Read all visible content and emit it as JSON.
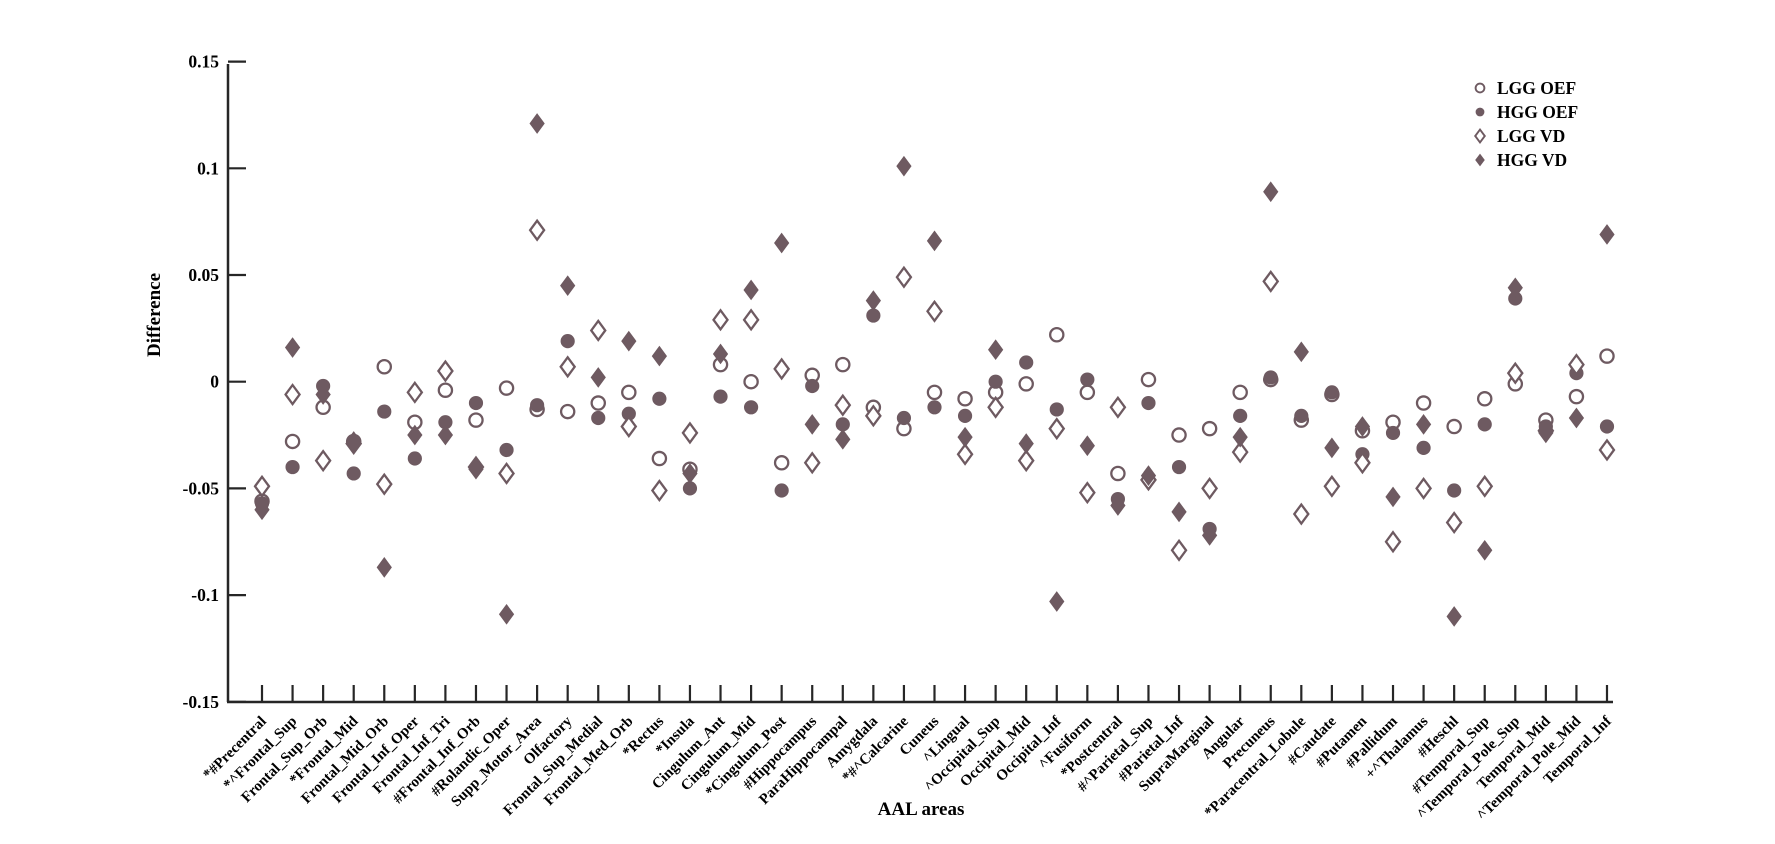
{
  "colors": {
    "marker": "#6e5a61",
    "axis": "#262626",
    "text": "#000000",
    "background": "#ffffff"
  },
  "axes": {
    "ylabel": "Difference",
    "xlabel": "AAL areas"
  },
  "legend": {
    "position": "upper right",
    "items": [
      {
        "label": "LGG OEF",
        "marker": "open-circle"
      },
      {
        "label": "HGG OEF",
        "marker": "filled-circle"
      },
      {
        "label": "LGG VD",
        "marker": "open-diamond"
      },
      {
        "label": "HGG VD",
        "marker": "filled-diamond"
      }
    ]
  },
  "chart_data": {
    "type": "scatter",
    "title": "",
    "xlabel": "AAL areas",
    "ylabel": "Difference",
    "ylim": [
      -0.15,
      0.15
    ],
    "ytick_values": [
      0.15,
      0.1,
      0.05,
      0,
      -0.05,
      -0.1,
      -0.15
    ],
    "ytick_labels": [
      "0.15",
      "0.1",
      "0.05",
      "0",
      "-0.05",
      "-0.1",
      "-0.15"
    ],
    "grid": false,
    "legend_position": "upper right",
    "categories": [
      "*#Precentral",
      "*^Frontal_Sup",
      "Frontal_Sup_Orb",
      "*Frontal_Mid",
      "Frontal_Mid_Orb",
      "Frontal_Inf_Oper",
      "Frontal_Inf_Tri",
      "#Frontal_Inf_Orb",
      "#Rolandic_Oper",
      "Supp_Motor_Area",
      "Olfactory",
      "Frontal_Sup_Medial",
      "Frontal_Med_Orb",
      "*Rectus",
      "*Insula",
      "Cingulum_Ant",
      "Cingulum_Mid",
      "*Cingulum_Post",
      "#Hippocampus",
      "ParaHippocampal",
      "Amygdala",
      "*#^Calcarine",
      "Cuneus",
      "^Lingual",
      "^Occipital_Sup",
      "Occipital_Mid",
      "Occipital_Inf",
      "^Fusiform",
      "*Postcentral",
      "#^Parietal_Sup",
      "#Parietal_Inf",
      "SupraMarginal",
      "Angular",
      "Precuneus",
      "*Paracentral_Lobule",
      "#Caudate",
      "#Putamen",
      "#Pallidum",
      "+^Thalamus",
      "#Heschl",
      "#Temporal_Sup",
      "^Temporal_Pole_Sup",
      "Temporal_Mid",
      "^Temporal_Pole_Mid",
      "Temporal_Inf"
    ],
    "series": [
      {
        "name": "LGG OEF",
        "marker": "open-circle",
        "values": [
          -0.056,
          -0.028,
          -0.012,
          -0.028,
          0.007,
          -0.019,
          -0.004,
          -0.018,
          -0.003,
          -0.013,
          -0.014,
          -0.01,
          -0.005,
          -0.036,
          -0.041,
          0.008,
          0.0,
          -0.038,
          0.003,
          0.008,
          -0.012,
          -0.022,
          -0.005,
          -0.008,
          -0.005,
          -0.001,
          0.022,
          -0.005,
          -0.043,
          0.001,
          -0.025,
          -0.022,
          -0.005,
          0.001,
          -0.018,
          -0.006,
          -0.023,
          -0.019,
          -0.01,
          -0.021,
          -0.008,
          -0.001,
          -0.018,
          -0.007,
          0.012
        ]
      },
      {
        "name": "HGG OEF",
        "marker": "filled-circle",
        "values": [
          -0.057,
          -0.04,
          -0.002,
          -0.043,
          -0.014,
          -0.036,
          -0.019,
          -0.01,
          -0.032,
          -0.011,
          0.019,
          -0.017,
          -0.015,
          -0.008,
          -0.05,
          -0.007,
          -0.012,
          -0.051,
          -0.002,
          -0.02,
          0.031,
          -0.017,
          -0.012,
          -0.016,
          0.0,
          0.009,
          -0.013,
          0.001,
          -0.055,
          -0.01,
          -0.04,
          -0.069,
          -0.016,
          0.002,
          -0.016,
          -0.005,
          -0.034,
          -0.024,
          -0.031,
          -0.051,
          -0.02,
          0.039,
          -0.021,
          0.004,
          -0.021
        ]
      },
      {
        "name": "LGG VD",
        "marker": "open-diamond",
        "values": [
          -0.049,
          -0.006,
          -0.037,
          -0.029,
          -0.048,
          -0.005,
          0.005,
          -0.04,
          -0.043,
          0.071,
          0.007,
          0.024,
          -0.021,
          -0.051,
          -0.024,
          0.029,
          0.029,
          0.006,
          -0.038,
          -0.011,
          -0.016,
          0.049,
          0.033,
          -0.034,
          -0.012,
          -0.037,
          -0.022,
          -0.052,
          -0.012,
          -0.046,
          -0.079,
          -0.05,
          -0.033,
          0.047,
          -0.062,
          -0.049,
          -0.038,
          -0.075,
          -0.05,
          -0.066,
          -0.049,
          0.004,
          -0.023,
          0.008,
          -0.032
        ]
      },
      {
        "name": "HGG VD",
        "marker": "filled-diamond",
        "values": [
          -0.06,
          0.016,
          -0.006,
          -0.028,
          -0.087,
          -0.025,
          -0.025,
          -0.041,
          -0.109,
          0.121,
          0.045,
          0.002,
          0.019,
          0.012,
          -0.043,
          0.013,
          0.043,
          0.065,
          -0.02,
          -0.027,
          0.038,
          0.101,
          0.066,
          -0.026,
          0.015,
          -0.029,
          -0.103,
          -0.03,
          -0.058,
          -0.044,
          -0.061,
          -0.072,
          -0.026,
          0.089,
          0.014,
          -0.031,
          -0.021,
          -0.054,
          -0.02,
          -0.11,
          -0.079,
          0.044,
          -0.024,
          -0.017,
          0.069
        ]
      }
    ]
  }
}
